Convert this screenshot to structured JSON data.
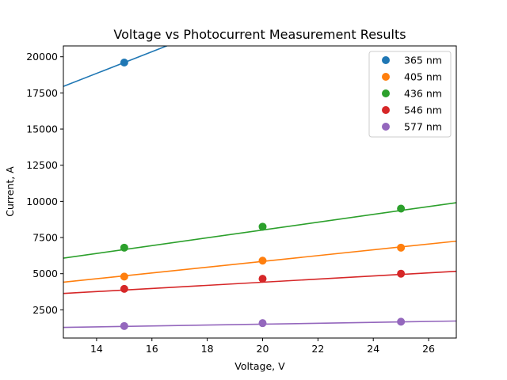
{
  "chart_data": {
    "type": "scatter",
    "title": "Voltage vs Photocurrent Measurement Results",
    "xlabel": "Voltage, V",
    "ylabel": "Current, A",
    "xlim": [
      12.8,
      27.0
    ],
    "ylim": [
      550,
      20750
    ],
    "xticks": [
      14,
      16,
      18,
      20,
      22,
      24,
      26
    ],
    "yticks": [
      2500,
      5000,
      7500,
      10000,
      12500,
      15000,
      17500,
      20000
    ],
    "legend_position": "top-right",
    "grid": false,
    "x": [
      15,
      20,
      25
    ],
    "series": [
      {
        "name": "365 nm",
        "color": "#1f77b4",
        "values": [
          19600,
          null,
          null
        ],
        "fit": {
          "slope": 750,
          "intercept": 8350
        }
      },
      {
        "name": "405 nm",
        "color": "#ff7f0e",
        "values": [
          4800,
          5900,
          6800
        ],
        "fit": {
          "slope": 200,
          "intercept": 1850
        }
      },
      {
        "name": "436 nm",
        "color": "#2ca02c",
        "values": [
          6800,
          8250,
          9500
        ],
        "fit": {
          "slope": 270,
          "intercept": 2620
        }
      },
      {
        "name": "546 nm",
        "color": "#d62728",
        "values": [
          3950,
          4650,
          5000
        ],
        "fit": {
          "slope": 108,
          "intercept": 2250
        }
      },
      {
        "name": "577 nm",
        "color": "#9467bd",
        "values": [
          1380,
          1580,
          1680
        ],
        "fit": {
          "slope": 31,
          "intercept": 890
        }
      }
    ]
  }
}
